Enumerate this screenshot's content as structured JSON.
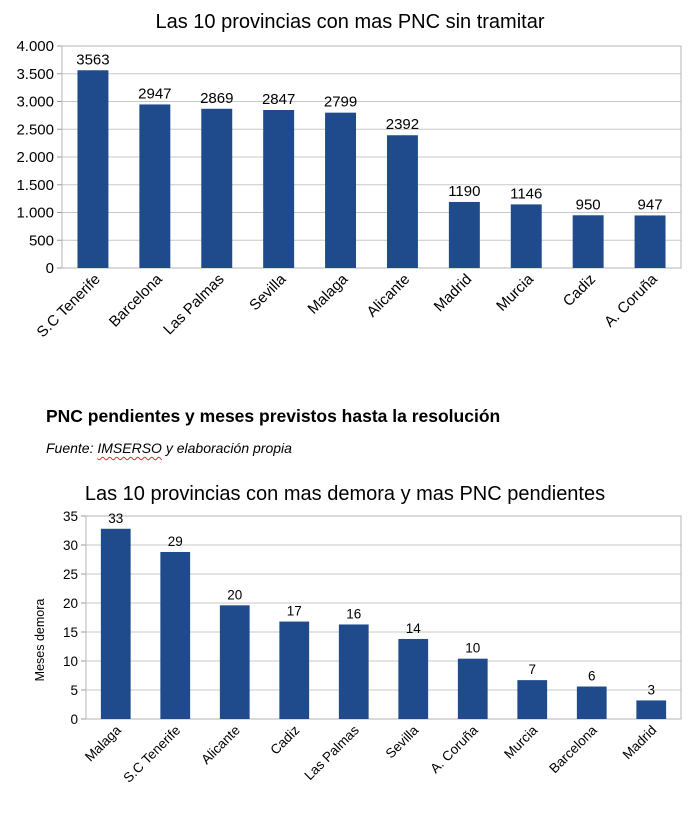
{
  "chart_data": [
    {
      "type": "bar",
      "title": "Las 10 provincias con mas PNC sin tramitar",
      "categories": [
        "S.C Tenerife",
        "Barcelona",
        "Las Palmas",
        "Sevilla",
        "Malaga",
        "Alicante",
        "Madrid",
        "Murcia",
        "Cadiz",
        "A. Coruña"
      ],
      "values": [
        3563,
        2947,
        2869,
        2847,
        2799,
        2392,
        1190,
        1146,
        950,
        947
      ],
      "data_labels": [
        "3563",
        "2947",
        "2869",
        "2847",
        "2799",
        "2392",
        "1190",
        "1146",
        "950",
        "947"
      ],
      "ylim": [
        0,
        4000
      ],
      "yticks": [
        0,
        500,
        1000,
        1500,
        2000,
        2500,
        3000,
        3500,
        4000
      ],
      "ytick_labels": [
        "0",
        "500",
        "1.000",
        "1.500",
        "2.000",
        "2.500",
        "3.000",
        "3.500",
        "4.000"
      ],
      "xlabel": "",
      "ylabel": "",
      "grid": true,
      "bar_color": "#1f4a8c"
    },
    {
      "type": "bar",
      "title": "Las 10 provincias con mas demora y mas PNC pendientes",
      "categories": [
        "Malaga",
        "S.C Tenerife",
        "Alicante",
        "Cadiz",
        "Las Palmas",
        "Sevilla",
        "A. Coruña",
        "Murcia",
        "Barcelona",
        "Madrid"
      ],
      "values": [
        32.8,
        28.8,
        19.6,
        16.8,
        16.3,
        13.8,
        10.4,
        6.7,
        5.6,
        3.2
      ],
      "data_labels": [
        "33",
        "29",
        "20",
        "17",
        "16",
        "14",
        "10",
        "7",
        "6",
        "3"
      ],
      "ylim": [
        0,
        35
      ],
      "yticks": [
        0,
        5,
        10,
        15,
        20,
        25,
        30,
        35
      ],
      "ytick_labels": [
        "0",
        "5",
        "10",
        "15",
        "20",
        "25",
        "30",
        "35"
      ],
      "xlabel": "",
      "ylabel": "Meses demora",
      "grid": true,
      "bar_color": "#1f4a8c"
    }
  ],
  "section": {
    "heading": "PNC pendientes y meses previstos hasta la resolución",
    "source_prefix": "Fuente: ",
    "source_org": "IMSERSO",
    "source_suffix": " y elaboración propia"
  }
}
